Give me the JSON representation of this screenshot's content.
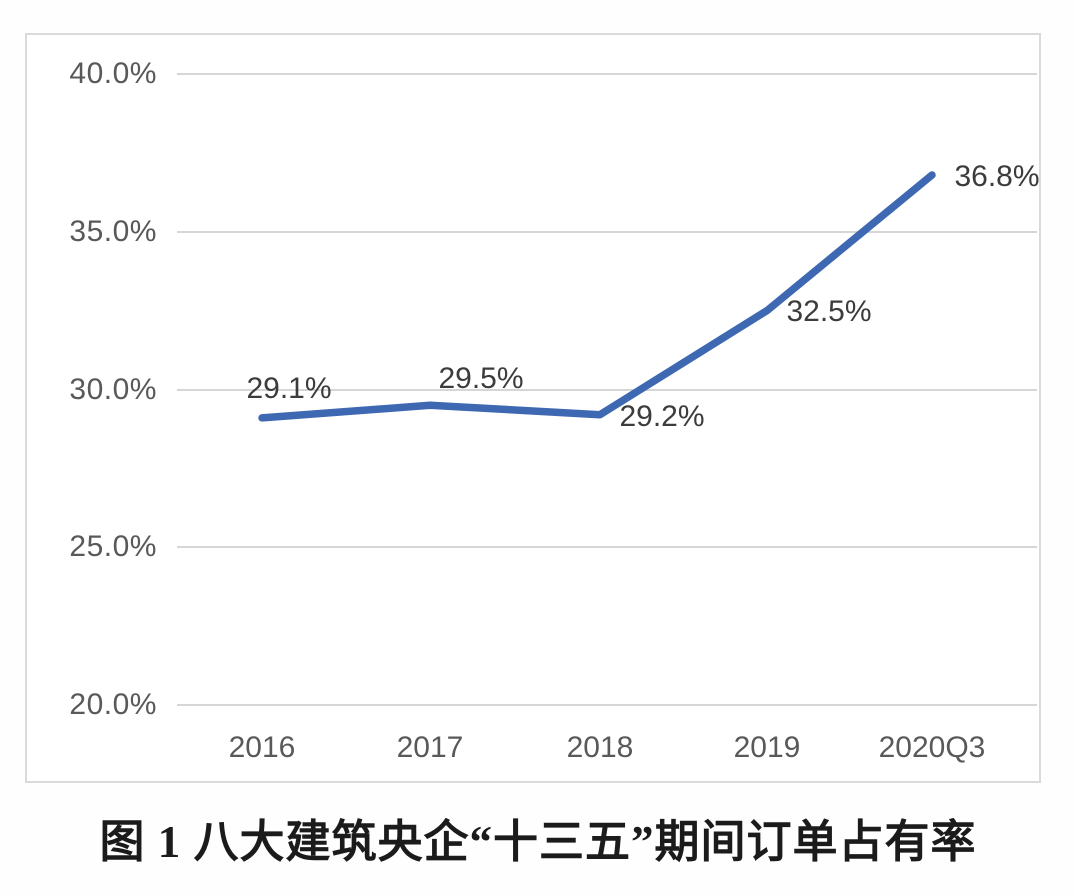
{
  "figure": {
    "caption": "图 1 八大建筑央企“十三五”期间订单占有率"
  },
  "chart_data": {
    "type": "line",
    "title": "图 1 八大建筑央企“十三五”期间订单占有率",
    "categories": [
      "2016",
      "2017",
      "2018",
      "2019",
      "2020Q3"
    ],
    "series": [
      {
        "name": "订单占有率",
        "values": [
          29.1,
          29.5,
          29.2,
          32.5,
          36.8
        ]
      }
    ],
    "value_labels": [
      "29.1%",
      "29.5%",
      "29.2%",
      "32.5%",
      "36.8%"
    ],
    "xlabel": "",
    "ylabel": "",
    "ylim": [
      20,
      40
    ],
    "ytick_step": 5,
    "yticks": [
      {
        "value": 40,
        "label": "40.0%"
      },
      {
        "value": 35,
        "label": "35.0%"
      },
      {
        "value": 30,
        "label": "30.0%"
      },
      {
        "value": 25,
        "label": "25.0%"
      },
      {
        "value": 20,
        "label": "20.0%"
      }
    ],
    "grid": true,
    "legend_position": "none",
    "colors": {
      "line": "#3E68B2",
      "grid": "#D6D6D6",
      "tick_text": "#595959",
      "data_label_text": "#3C3C3C",
      "frame_border": "#DADADA",
      "title_text": "#1B1B1B",
      "background": "#FFFFFF"
    }
  }
}
